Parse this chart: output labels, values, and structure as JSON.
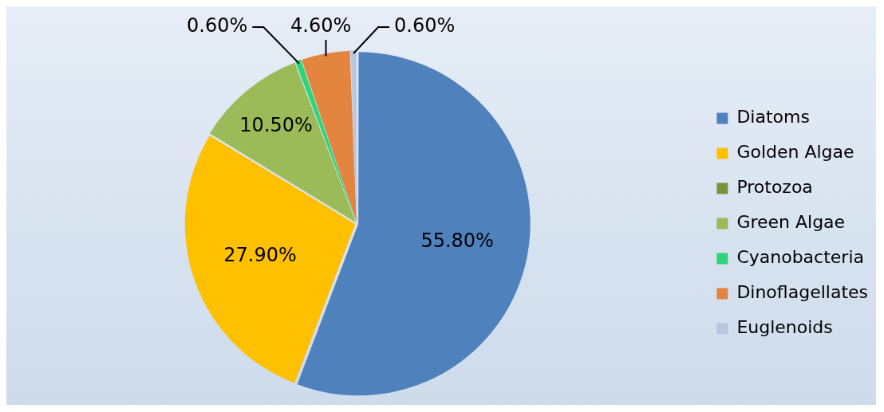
{
  "chart_data": {
    "type": "pie",
    "categories": [
      "Diatoms",
      "Golden Algae",
      "Protozoa",
      "Green Algae",
      "Cyanobacteria",
      "Dinoflagellates",
      "Euglenoids"
    ],
    "values": [
      55.8,
      27.9,
      0,
      10.5,
      0.6,
      4.6,
      0.6
    ],
    "colors": [
      "#4f81bd",
      "#ffc000",
      "#77933c",
      "#9bbb59",
      "#2ed47a",
      "#e3843f",
      "#b8c6e0"
    ],
    "value_labels": [
      "55.80%",
      "27.90%",
      null,
      "10.50%",
      "0.60%",
      "4.60%",
      "0.60%"
    ],
    "legend": "right"
  }
}
